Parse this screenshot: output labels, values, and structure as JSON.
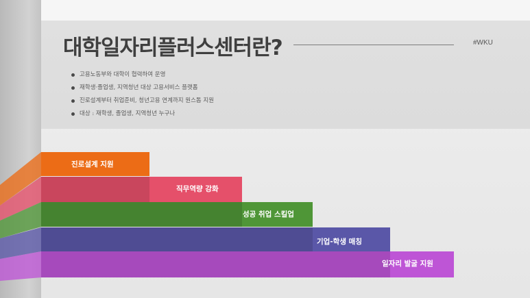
{
  "slide": {
    "title": "대학일자리플러스센터란?",
    "hashtag": "#WKU",
    "bullets": [
      "고용노동부와 대학이 협력하여 운영",
      "재학생·졸업생, 지역청년 대상 고용서비스 플랫폼",
      "진로설계부터 취업준비, 청년고용 연계까지 원스톱 지원",
      "대상 : 재학생, 졸업생, 지역청년 누구나"
    ],
    "steps": [
      {
        "label": "진로설계 지원",
        "color": "#ec6c16"
      },
      {
        "label": "직무역량 강화",
        "color": "#e5506a"
      },
      {
        "label": "성공 취업 스킬업",
        "color": "#4f9637"
      },
      {
        "label": "기업-학생 매칭",
        "color": "#5a57a8"
      },
      {
        "label": "일자리 발굴 지원",
        "color": "#be55d6"
      }
    ]
  }
}
